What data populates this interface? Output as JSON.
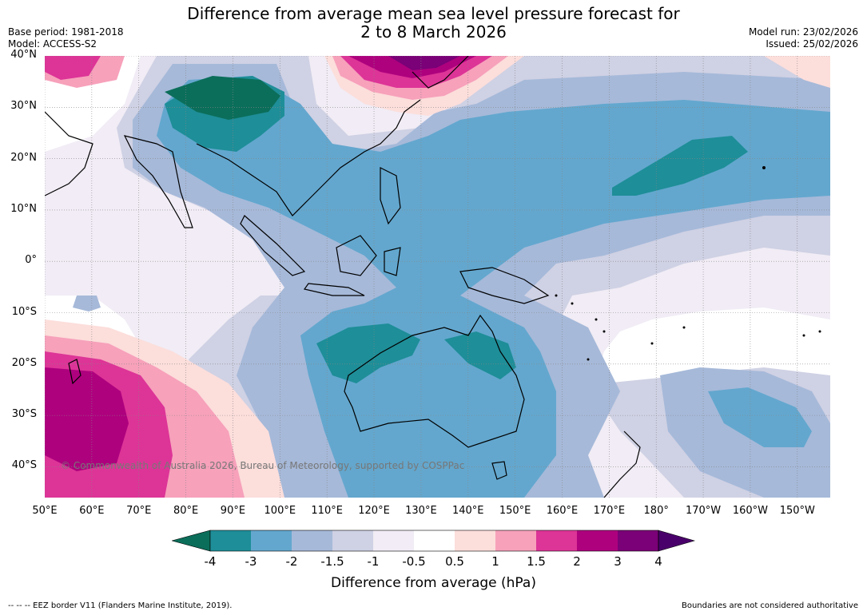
{
  "header": {
    "title_line1": "Difference from average mean sea level pressure forecast for",
    "title_line2": "2 to 8 March 2026",
    "base_period": "Base period: 1981-2018",
    "model": "Model: ACCESS-S2",
    "model_run": "Model run: 23/02/2026",
    "issued": "Issued: 25/02/2026"
  },
  "map": {
    "copyright": "© Commonwealth of Australia 2026, Bureau of Meteorology, supported by COSPPac",
    "lat_labels": [
      {
        "text": "40°N",
        "lat": 40
      },
      {
        "text": "30°N",
        "lat": 30
      },
      {
        "text": "20°N",
        "lat": 20
      },
      {
        "text": "10°N",
        "lat": 10
      },
      {
        "text": "0°",
        "lat": 0
      },
      {
        "text": "10°S",
        "lat": -10
      },
      {
        "text": "20°S",
        "lat": -20
      },
      {
        "text": "30°S",
        "lat": -30
      },
      {
        "text": "40°S",
        "lat": -40
      }
    ],
    "lon_labels": [
      {
        "text": "50°E",
        "lon": 50
      },
      {
        "text": "60°E",
        "lon": 60
      },
      {
        "text": "70°E",
        "lon": 70
      },
      {
        "text": "80°E",
        "lon": 80
      },
      {
        "text": "90°E",
        "lon": 90
      },
      {
        "text": "100°E",
        "lon": 100
      },
      {
        "text": "110°E",
        "lon": 110
      },
      {
        "text": "120°E",
        "lon": 120
      },
      {
        "text": "130°E",
        "lon": 130
      },
      {
        "text": "140°E",
        "lon": 140
      },
      {
        "text": "150°E",
        "lon": 150
      },
      {
        "text": "160°E",
        "lon": 160
      },
      {
        "text": "170°E",
        "lon": 170
      },
      {
        "text": "180°",
        "lon": 180
      },
      {
        "text": "170°W",
        "lon": 190
      },
      {
        "text": "160°W",
        "lon": 200
      },
      {
        "text": "150°W",
        "lon": 210
      }
    ],
    "extent": {
      "lon_min": 50,
      "lon_max": 217,
      "lat_min": -46,
      "lat_max": 40
    }
  },
  "legend": {
    "title": "Difference from average (hPa)",
    "ticks": [
      "-4",
      "-3",
      "-2",
      "-1.5",
      "-1",
      "-0.5",
      "0.5",
      "1",
      "1.5",
      "2",
      "3",
      "4"
    ],
    "colors": {
      "below_-4": "#0b6e5a",
      "-4_-3": "#1e8e98",
      "-3_-2": "#63a7ce",
      "-2_-1.5": "#a6b9d9",
      "-1.5_-1": "#cfd1e4",
      "-1_-0.5": "#f1ecf5",
      "-0.5_0.5": "#ffffff",
      "0.5_1": "#fcdedb",
      "1_1.5": "#f7a1bb",
      "1.5_2": "#dd3497",
      "2_3": "#ae017e",
      "3_4": "#7a0177",
      "above_4": "#49006a"
    }
  },
  "footer": {
    "eez": "--  --  -- EEZ border V11 (Flanders Marine Institute, 2019).",
    "disclaimer": "Boundaries are not considered authoritative"
  }
}
